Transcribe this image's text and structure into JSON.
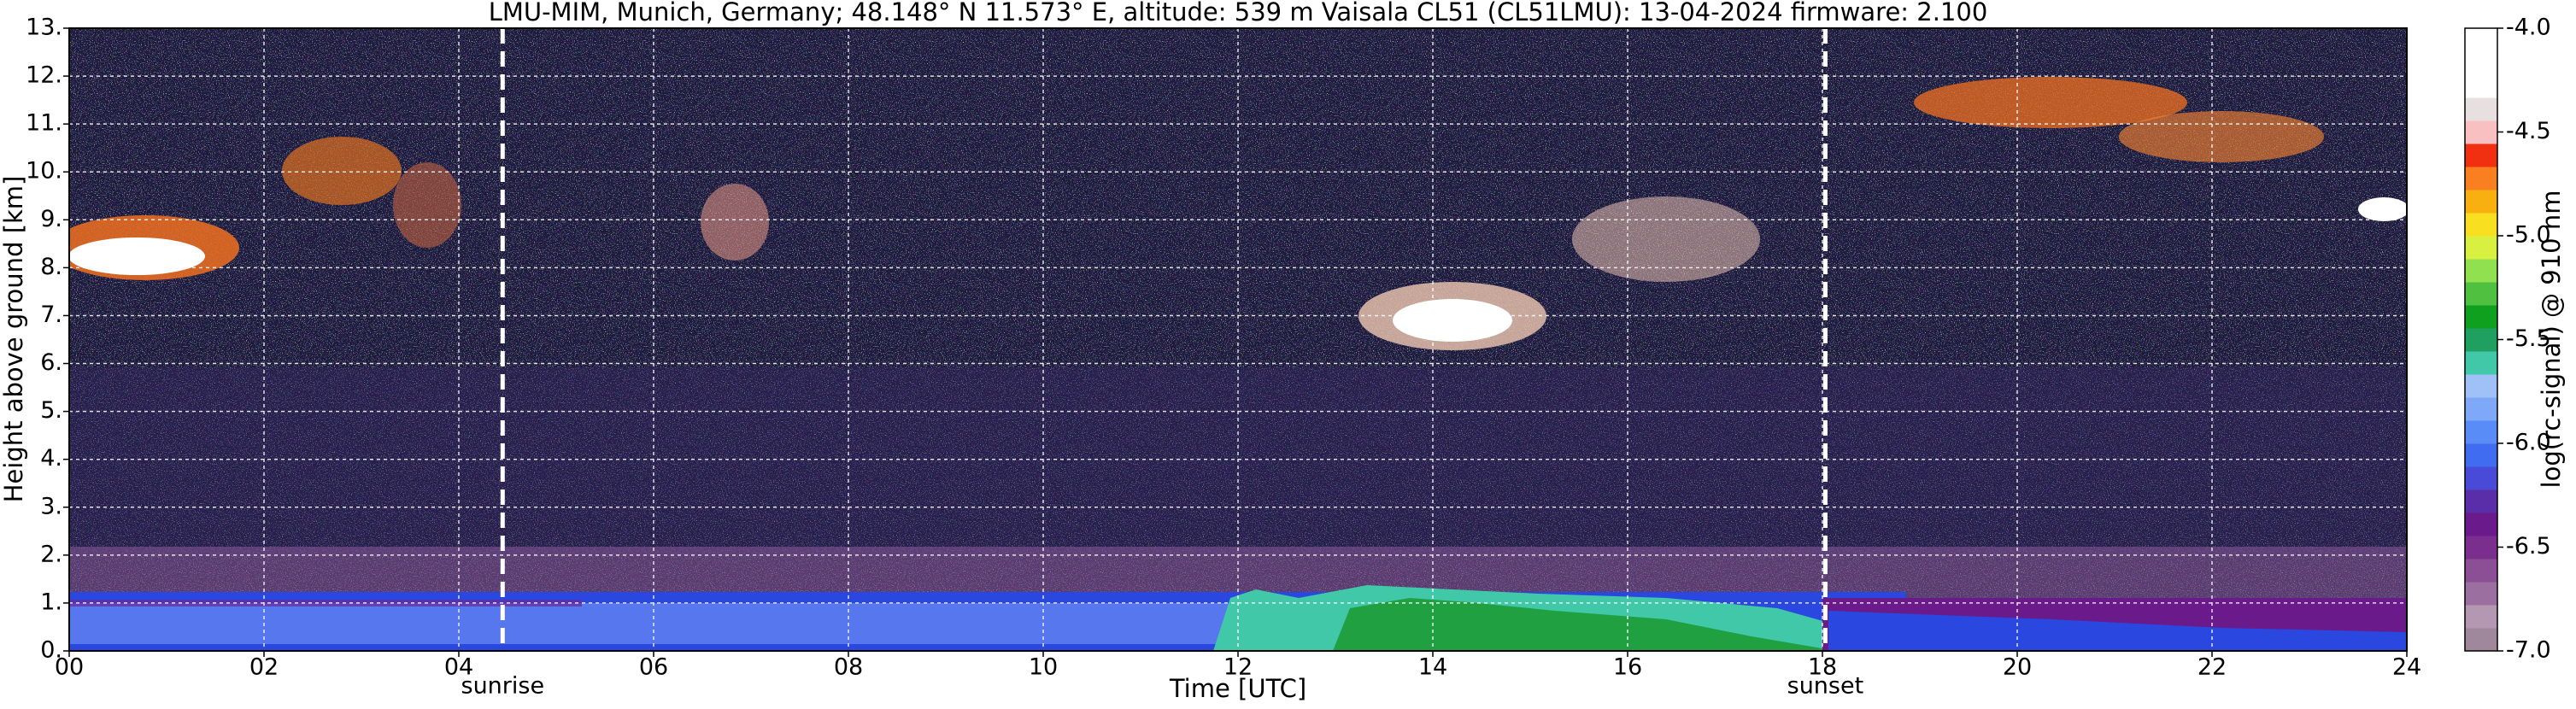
{
  "chart_data": {
    "type": "heatmap",
    "title": "LMU-MIM, Munich, Germany; 48.148° N 11.573° E, altitude: 539 m    Vaisala CL51 (CL51LMU): 13-04-2024    firmware: 2.100",
    "x_label": "Time [UTC]",
    "y_label": "Height above ground [km]",
    "colorbar_label": "log(rc-signal) @ 910 nm",
    "xlim": [
      0,
      24
    ],
    "xticks": [
      {
        "value": 0,
        "label": "00"
      },
      {
        "value": 2,
        "label": "02"
      },
      {
        "value": 4,
        "label": "04"
      },
      {
        "value": 6,
        "label": "06"
      },
      {
        "value": 8,
        "label": "08"
      },
      10,
      12,
      14,
      16,
      18,
      20,
      22,
      24
    ],
    "ylim": [
      0,
      13
    ],
    "yticks": [
      {
        "value": 0,
        "label": "0."
      },
      {
        "value": 1,
        "label": "1."
      },
      {
        "value": 2,
        "label": "2."
      },
      {
        "value": 3,
        "label": "3."
      },
      {
        "value": 4,
        "label": "4."
      },
      {
        "value": 5,
        "label": "5."
      },
      {
        "value": 6,
        "label": "6."
      },
      {
        "value": 7,
        "label": "7."
      },
      {
        "value": 8,
        "label": "8."
      },
      {
        "value": 9,
        "label": "9."
      },
      {
        "value": 10,
        "label": "10."
      },
      {
        "value": 11,
        "label": "11."
      },
      {
        "value": 12,
        "label": "12."
      },
      {
        "value": 13,
        "label": "13."
      }
    ],
    "clim": [
      -7,
      -4
    ],
    "cticks": [
      {
        "value": -7,
        "label": "-7.0"
      },
      {
        "value": -6.5,
        "label": "-6.5"
      },
      {
        "value": -6,
        "label": "-6.0"
      },
      {
        "value": -5.5,
        "label": "-5.5"
      },
      {
        "value": -5,
        "label": "-5.0"
      },
      {
        "value": -4.5,
        "label": "-4.5"
      },
      {
        "value": -4,
        "label": "-4.0"
      }
    ],
    "colorbar_colors": [
      "#a0889c",
      "#b497b0",
      "#9b6fa0",
      "#8a4f95",
      "#7a2f8e",
      "#6a1a8a",
      "#5a2ea8",
      "#4a4ad8",
      "#3f6cf0",
      "#5a8cf8",
      "#7fa8f8",
      "#a0c0f8",
      "#40c8a8",
      "#20a060",
      "#10a020",
      "#50c040",
      "#90e050",
      "#d8f040",
      "#f8e020",
      "#f8b010",
      "#f88020",
      "#f03010",
      "#f8c0c0",
      "#e8e0e0",
      "#ffffff",
      "#ffffff",
      "#ffffff"
    ],
    "grid": true,
    "annotations": [
      {
        "text": "sunrise",
        "x": 4.45
      },
      {
        "text": "sunset",
        "x": 18.03
      }
    ]
  }
}
